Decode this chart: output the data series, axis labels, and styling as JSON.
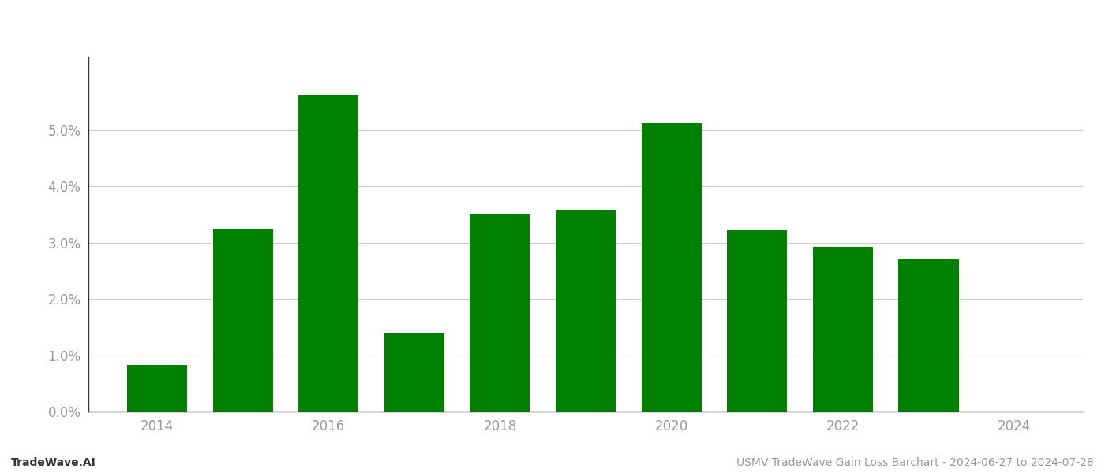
{
  "years": [
    2014,
    2015,
    2016,
    2017,
    2018,
    2019,
    2020,
    2021,
    2022,
    2023
  ],
  "values": [
    0.0082,
    0.0324,
    0.0562,
    0.0138,
    0.035,
    0.0357,
    0.0513,
    0.0322,
    0.0293,
    0.027
  ],
  "bar_color": "#008000",
  "background_color": "#ffffff",
  "grid_color": "#cccccc",
  "axis_label_color": "#999999",
  "footer_left": "TradeWave.AI",
  "footer_right": "USMV TradeWave Gain Loss Barchart - 2024-06-27 to 2024-07-28",
  "footer_fontsize": 10,
  "ytick_values": [
    0.0,
    0.01,
    0.02,
    0.03,
    0.04,
    0.05
  ],
  "ylim": [
    0,
    0.063
  ],
  "xlim": [
    2013.2,
    2024.8
  ],
  "bar_width": 0.7,
  "xticks": [
    2014,
    2016,
    2018,
    2020,
    2022,
    2024
  ]
}
